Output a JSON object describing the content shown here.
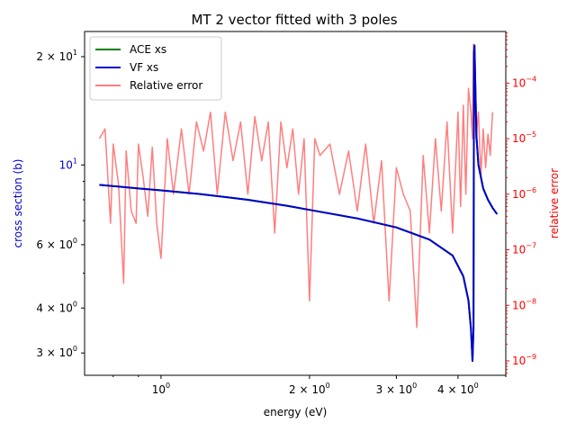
{
  "chart_data": {
    "type": "line",
    "title": "MT 2 vector fitted with 3 poles",
    "xlabel": "energy (eV)",
    "ylabel_left": "cross section (b)",
    "ylabel_right": "relative error",
    "x_scale": "log",
    "y_left_scale": "log",
    "y_right_scale": "log",
    "xlim": [
      0.7,
      5.0
    ],
    "ylim_left": [
      2.6,
      23.5
    ],
    "ylim_right": [
      5.5e-10,
      0.00085
    ],
    "legend_position": "top-left",
    "x_ticks": [
      {
        "value": 1.0,
        "base": "10",
        "exp": "0"
      },
      {
        "value": 2.0,
        "base": "2 × 10",
        "exp": "0"
      },
      {
        "value": 3.0,
        "base": "3 × 10",
        "exp": "0"
      },
      {
        "value": 4.0,
        "base": "4 × 10",
        "exp": "0"
      }
    ],
    "y_left_ticks": [
      {
        "value": 3,
        "base": "3 × 10",
        "exp": "0"
      },
      {
        "value": 4,
        "base": "4 × 10",
        "exp": "0"
      },
      {
        "value": 6,
        "base": "6 × 10",
        "exp": "0"
      },
      {
        "value": 10,
        "base": "10",
        "exp": "1"
      },
      {
        "value": 20,
        "base": "2 × 10",
        "exp": "1"
      }
    ],
    "y_right_ticks": [
      {
        "value": 1e-09,
        "base": "10",
        "exp": "−9"
      },
      {
        "value": 1e-08,
        "base": "10",
        "exp": "−8"
      },
      {
        "value": 1e-07,
        "base": "10",
        "exp": "−7"
      },
      {
        "value": 1e-06,
        "base": "10",
        "exp": "−6"
      },
      {
        "value": 1e-05,
        "base": "10",
        "exp": "−5"
      },
      {
        "value": 0.0001,
        "base": "10",
        "exp": "−4"
      }
    ],
    "series": [
      {
        "name": "ACE xs",
        "color": "#008000",
        "axis": "left",
        "x": [
          0.75,
          0.9,
          1.0,
          1.2,
          1.5,
          1.8,
          2.0,
          2.5,
          3.0,
          3.5,
          3.9,
          4.1,
          4.2,
          4.25,
          4.28,
          4.3,
          4.31,
          4.32,
          4.34,
          4.36,
          4.4,
          4.5,
          4.6,
          4.7,
          4.8
        ],
        "y": [
          8.8,
          8.6,
          8.5,
          8.3,
          8.0,
          7.7,
          7.5,
          7.1,
          6.7,
          6.2,
          5.6,
          4.9,
          4.2,
          3.5,
          2.85,
          3.5,
          20.5,
          21.5,
          16.0,
          12.0,
          10.0,
          8.6,
          8.0,
          7.6,
          7.3
        ]
      },
      {
        "name": "VF xs",
        "color": "#0000cc",
        "axis": "left",
        "x": [
          0.75,
          0.9,
          1.0,
          1.2,
          1.5,
          1.8,
          2.0,
          2.5,
          3.0,
          3.5,
          3.9,
          4.1,
          4.2,
          4.25,
          4.28,
          4.3,
          4.31,
          4.32,
          4.34,
          4.36,
          4.4,
          4.5,
          4.6,
          4.7,
          4.8
        ],
        "y": [
          8.8,
          8.6,
          8.5,
          8.3,
          8.0,
          7.7,
          7.5,
          7.1,
          6.7,
          6.2,
          5.6,
          4.9,
          4.2,
          3.5,
          2.85,
          3.5,
          20.5,
          21.5,
          16.0,
          12.0,
          10.0,
          8.6,
          8.0,
          7.6,
          7.3
        ]
      },
      {
        "name": "Relative error",
        "color": "#ff7f7f",
        "axis": "right",
        "x": [
          0.75,
          0.77,
          0.79,
          0.8,
          0.82,
          0.84,
          0.85,
          0.87,
          0.89,
          0.9,
          0.92,
          0.94,
          0.96,
          0.98,
          1.0,
          1.03,
          1.06,
          1.1,
          1.14,
          1.18,
          1.22,
          1.26,
          1.3,
          1.35,
          1.4,
          1.45,
          1.5,
          1.55,
          1.6,
          1.65,
          1.7,
          1.75,
          1.8,
          1.85,
          1.9,
          1.95,
          2.0,
          2.05,
          2.1,
          2.2,
          2.3,
          2.4,
          2.5,
          2.6,
          2.7,
          2.8,
          2.9,
          3.0,
          3.1,
          3.2,
          3.3,
          3.4,
          3.5,
          3.6,
          3.7,
          3.8,
          3.9,
          4.0,
          4.05,
          4.1,
          4.15,
          4.2,
          4.25,
          4.28,
          4.3,
          4.32,
          4.35,
          4.4,
          4.45,
          4.5,
          4.55,
          4.6,
          4.65,
          4.7
        ],
        "y": [
          1e-05,
          1.5e-05,
          3e-07,
          8e-06,
          1.5e-06,
          2.5e-08,
          6e-06,
          5e-07,
          3e-07,
          8e-06,
          2e-06,
          4e-07,
          7e-06,
          3e-07,
          7e-08,
          1e-05,
          1e-06,
          1.5e-05,
          1e-06,
          2e-05,
          6e-06,
          3e-05,
          1e-06,
          3e-05,
          4e-06,
          2e-05,
          1e-06,
          2.5e-05,
          4e-06,
          2e-05,
          2e-07,
          2e-05,
          3e-06,
          1.5e-05,
          1e-06,
          1e-05,
          1.2e-08,
          1e-05,
          5e-06,
          8e-06,
          1e-06,
          6e-06,
          5e-07,
          8e-06,
          3e-07,
          4e-06,
          1.2e-08,
          3e-06,
          1e-06,
          5e-07,
          4e-09,
          5e-06,
          2e-07,
          1e-05,
          5e-07,
          2e-05,
          2e-07,
          3e-05,
          6e-07,
          4e-05,
          1e-06,
          8e-05,
          3e-05,
          1e-05,
          0.0005,
          0.0004,
          1e-05,
          3e-05,
          2e-06,
          1.5e-05,
          3e-06,
          1.2e-05,
          5e-06,
          3e-05
        ]
      }
    ]
  }
}
